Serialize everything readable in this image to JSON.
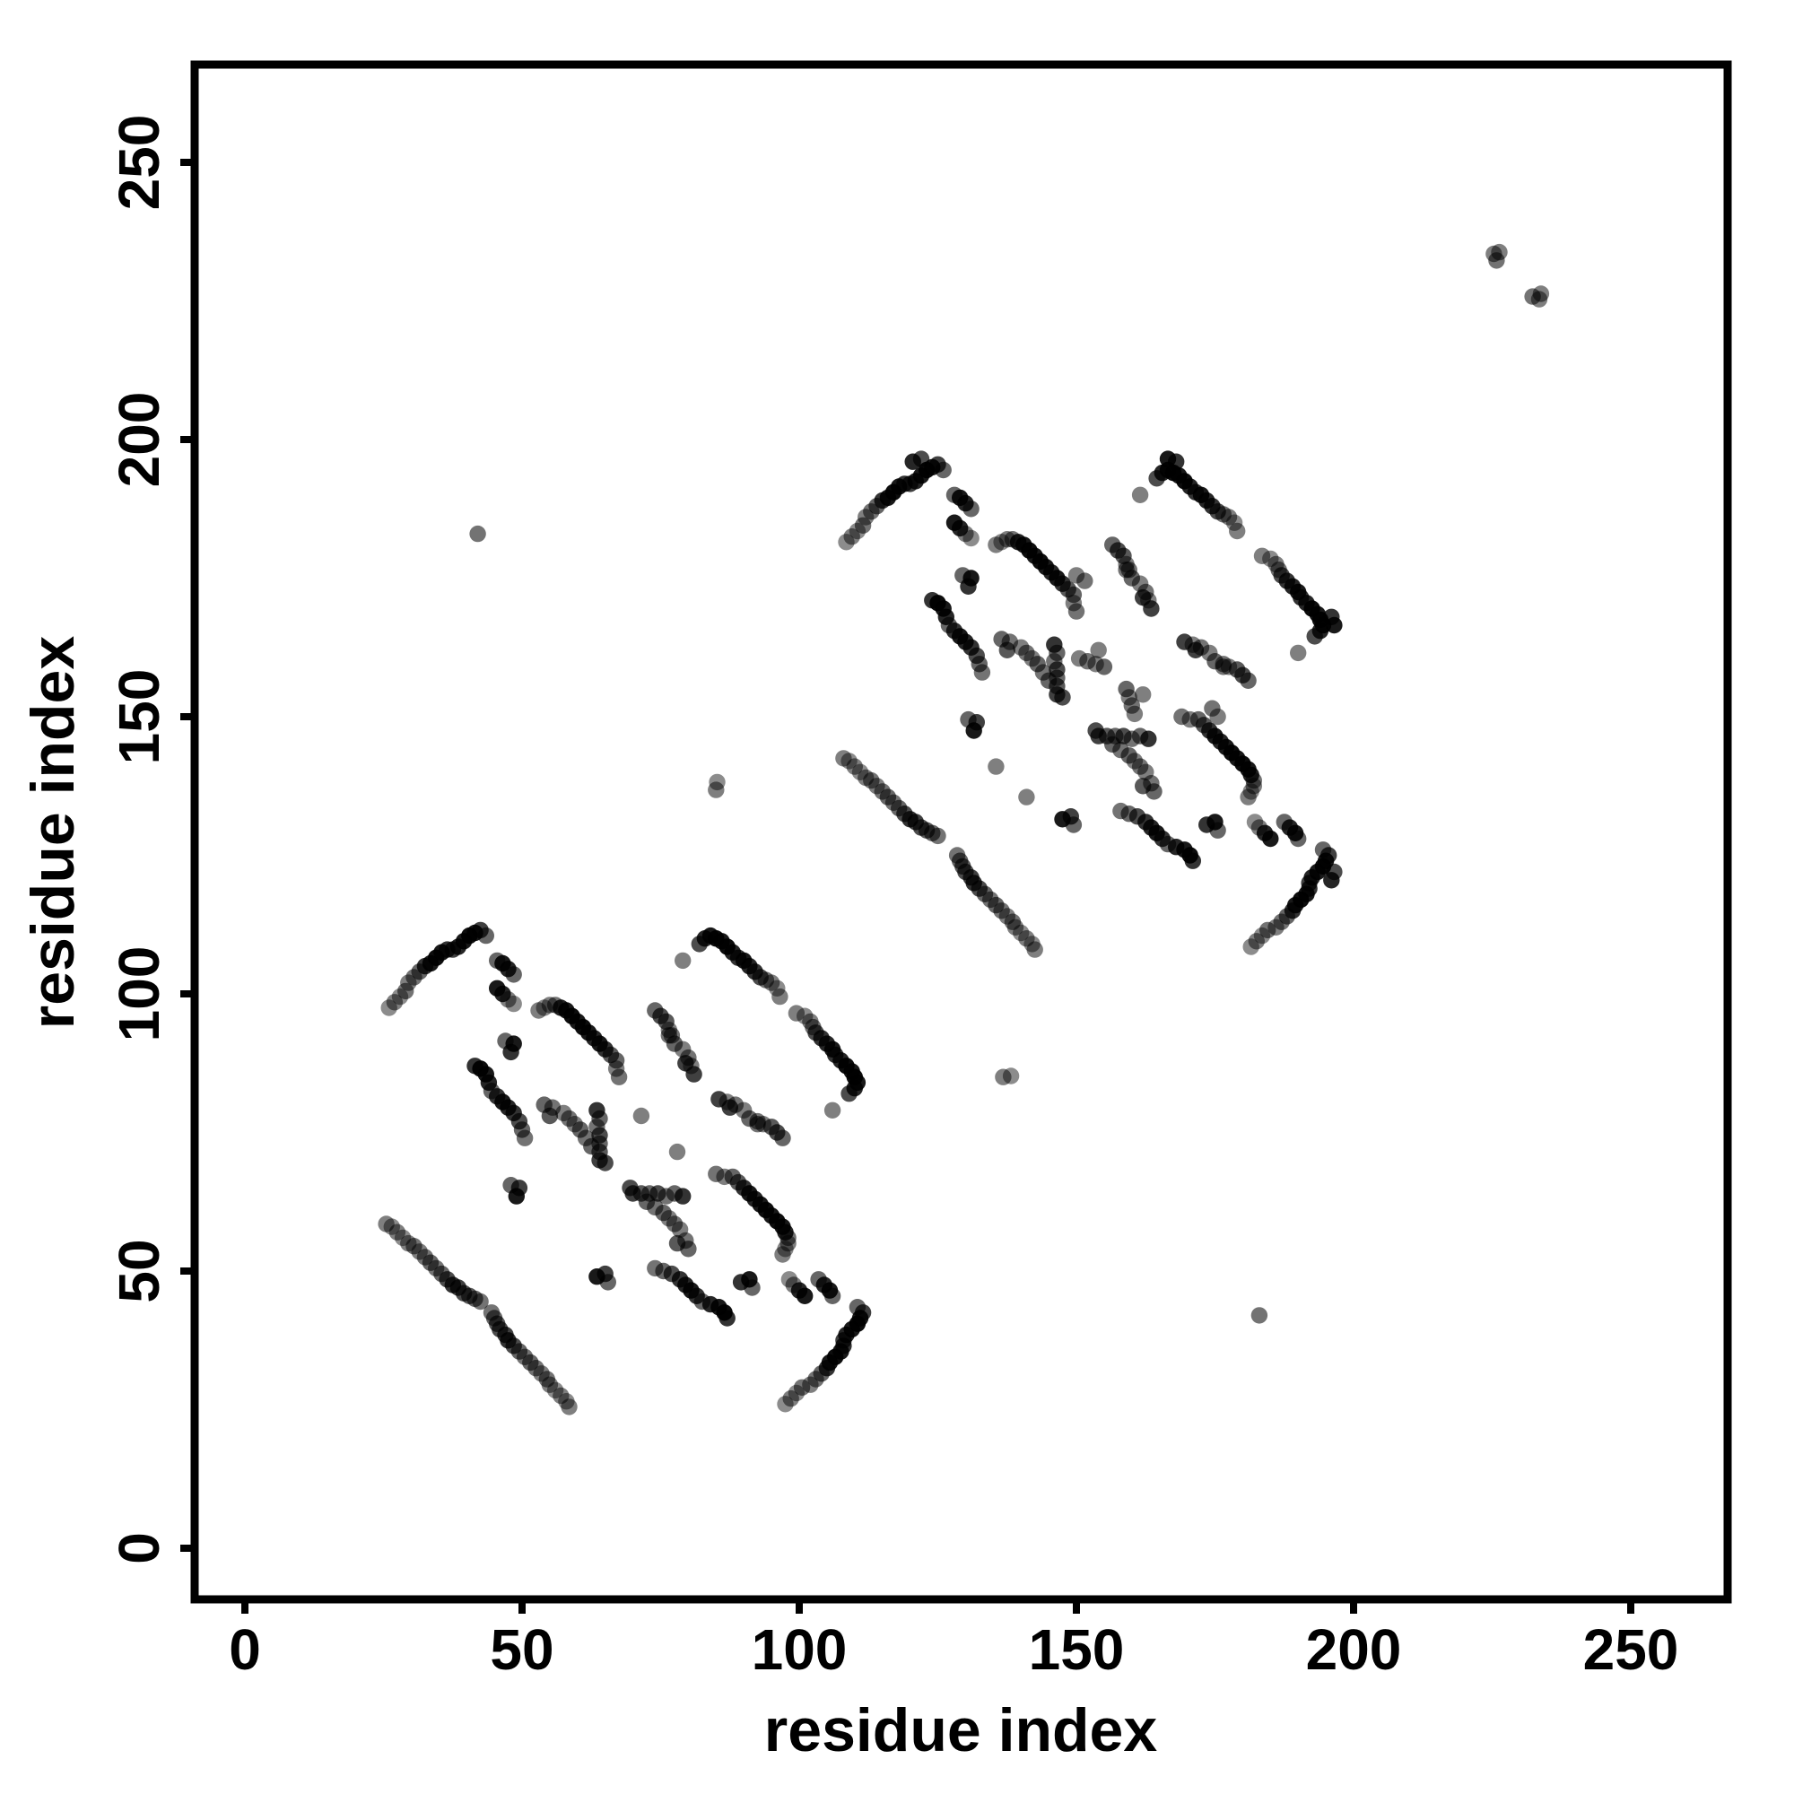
{
  "figure": {
    "description": "Protein residue-residue contact map scatter plot, base-R style, black semi-transparent points, two tandem structural domains symmetric about the diagonal",
    "background_color": "#ffffff",
    "foreground_color": "#000000"
  },
  "chart_data": {
    "type": "scatter",
    "title": "",
    "xlabel": "residue index",
    "ylabel": "residue index",
    "x_ticks": [
      0,
      50,
      100,
      150,
      200,
      250
    ],
    "y_ticks": [
      0,
      50,
      100,
      150,
      200,
      250
    ],
    "xlim": [
      -9,
      267.5
    ],
    "ylim": [
      -9,
      267.5
    ],
    "grid": false,
    "legend": "none",
    "point_color": "#000000",
    "marker_radius_px": 9.2,
    "symmetry": "every contact (i,j) is also plotted as (j,i) mirrored across the main diagonal",
    "domain2_offset": {
      "dx": 82.5,
      "dy": 84
    },
    "points_upper_domain1": [
      [
        26,
        97.5,
        0.45
      ],
      [
        27,
        98.5,
        0.5
      ],
      [
        28,
        99.5,
        0.45
      ],
      [
        29,
        100.5,
        0.55
      ],
      [
        29.5,
        102,
        0.5
      ],
      [
        30.5,
        103,
        0.55
      ],
      [
        31.5,
        104,
        0.6
      ],
      [
        32.5,
        105,
        0.8
      ],
      [
        33.5,
        105.5,
        0.9
      ],
      [
        34.5,
        106.5,
        0.95
      ],
      [
        35.5,
        107.5,
        0.9
      ],
      [
        36.5,
        108,
        0.8
      ],
      [
        37.5,
        108,
        0.75
      ],
      [
        38.5,
        108.5,
        0.85
      ],
      [
        39.5,
        109.5,
        0.9
      ],
      [
        40.5,
        110.5,
        0.95
      ],
      [
        41.5,
        111,
        0.9
      ],
      [
        42.5,
        111.5,
        0.75
      ],
      [
        43.5,
        110.5,
        0.6
      ],
      [
        45.5,
        106,
        0.6
      ],
      [
        46.5,
        105.5,
        0.9
      ],
      [
        47.5,
        104.5,
        0.85
      ],
      [
        48.5,
        103.5,
        0.6
      ],
      [
        45.5,
        101,
        0.9
      ],
      [
        46.5,
        100,
        0.85
      ],
      [
        47.5,
        99,
        0.5
      ],
      [
        48.5,
        98.2,
        0.45
      ],
      [
        53,
        97,
        0.5
      ],
      [
        54,
        97.5,
        0.45
      ],
      [
        55,
        98,
        0.5
      ],
      [
        56,
        98,
        0.55
      ],
      [
        57,
        97.5,
        0.85
      ],
      [
        58,
        97,
        0.9
      ],
      [
        59,
        96,
        0.95
      ],
      [
        60,
        95,
        0.9
      ],
      [
        61,
        94,
        0.95
      ],
      [
        62,
        93,
        0.9
      ],
      [
        63,
        92,
        0.85
      ],
      [
        64,
        91,
        0.9
      ],
      [
        65,
        90,
        0.8
      ],
      [
        66,
        89,
        0.65
      ],
      [
        67,
        88,
        0.6
      ],
      [
        67,
        86.5,
        0.5
      ],
      [
        67.5,
        85,
        0.55
      ],
      [
        41.5,
        87,
        0.8
      ],
      [
        42.5,
        86.5,
        0.95
      ],
      [
        43.5,
        85.5,
        0.9
      ],
      [
        44,
        84,
        0.85
      ],
      [
        44.5,
        82.5,
        0.6
      ],
      [
        45.5,
        81.5,
        0.8
      ],
      [
        46.5,
        80.5,
        0.9
      ],
      [
        47.5,
        79.5,
        0.85
      ],
      [
        48.5,
        78.5,
        0.8
      ],
      [
        49.5,
        77,
        0.7
      ],
      [
        50,
        75.5,
        0.6
      ],
      [
        50.5,
        74,
        0.55
      ],
      [
        63.5,
        79,
        0.8
      ],
      [
        64,
        77.5,
        0.6
      ],
      [
        63.5,
        76,
        0.55
      ],
      [
        64,
        74.5,
        0.7
      ],
      [
        64,
        73,
        0.6
      ],
      [
        64,
        71.5,
        0.65
      ],
      [
        64,
        70,
        0.75
      ],
      [
        57.5,
        78.5,
        0.5
      ],
      [
        58.5,
        77.5,
        0.55
      ],
      [
        59.5,
        76.5,
        0.5
      ],
      [
        60.5,
        75.5,
        0.6
      ],
      [
        61.5,
        74,
        0.55
      ],
      [
        62.5,
        72.5,
        0.6
      ],
      [
        65,
        69.5,
        0.7
      ],
      [
        47,
        91.5,
        0.6
      ],
      [
        48.5,
        91,
        0.9
      ],
      [
        48,
        89.5,
        0.8
      ],
      [
        74,
        97,
        0.6
      ],
      [
        75,
        96,
        0.7
      ],
      [
        76,
        95,
        0.65
      ],
      [
        76.5,
        93.5,
        0.5
      ],
      [
        77,
        92.5,
        0.55
      ],
      [
        79.5,
        87.5,
        0.75
      ],
      [
        81,
        85.5,
        0.75
      ],
      [
        80.5,
        87,
        0.5
      ],
      [
        80,
        88.5,
        0.55
      ],
      [
        79,
        90,
        0.5
      ],
      [
        77.5,
        91,
        0.6
      ],
      [
        76.5,
        92.5,
        0.55
      ],
      [
        71.5,
        78,
        0.5
      ],
      [
        79,
        106,
        0.5
      ],
      [
        82,
        109,
        0.7
      ],
      [
        83,
        110,
        0.85
      ],
      [
        84,
        110.5,
        0.9
      ],
      [
        85,
        110,
        0.95
      ],
      [
        86,
        109.5,
        0.9
      ],
      [
        87,
        108.5,
        0.95
      ],
      [
        88,
        107.5,
        0.85
      ],
      [
        89,
        106.5,
        0.8
      ],
      [
        90,
        106,
        0.9
      ],
      [
        91,
        105,
        0.85
      ],
      [
        92,
        104,
        0.8
      ],
      [
        93,
        103,
        0.7
      ],
      [
        94,
        102.5,
        0.55
      ],
      [
        95,
        102,
        0.5
      ],
      [
        96,
        101,
        0.45
      ],
      [
        96.5,
        99.5,
        0.5
      ],
      [
        25.5,
        58.5,
        0.5
      ],
      [
        26.5,
        58,
        0.45
      ],
      [
        27.5,
        57,
        0.5
      ],
      [
        28.5,
        56,
        0.45
      ],
      [
        29.5,
        55,
        0.5
      ],
      [
        30.5,
        54.5,
        0.55
      ],
      [
        31.5,
        53.5,
        0.5
      ],
      [
        32.5,
        52.5,
        0.55
      ],
      [
        33.5,
        51.5,
        0.6
      ],
      [
        34.5,
        50.5,
        0.55
      ],
      [
        35.5,
        49.5,
        0.6
      ],
      [
        36.5,
        48.5,
        0.7
      ],
      [
        37.5,
        47.5,
        0.8
      ],
      [
        38.5,
        47,
        0.75
      ],
      [
        39.5,
        46,
        0.7
      ],
      [
        40.5,
        45.5,
        0.65
      ],
      [
        41.5,
        45,
        0.6
      ],
      [
        42.5,
        44.5,
        0.55
      ],
      [
        48,
        65.5,
        0.6
      ],
      [
        49.5,
        65,
        0.75
      ],
      [
        49,
        63.5,
        0.9
      ],
      [
        54,
        80,
        0.6
      ],
      [
        55.5,
        79.5,
        0.55
      ],
      [
        55,
        78,
        0.65
      ]
    ],
    "points_upper_domain2_extra": [
      [
        150,
        175.5,
        0.5
      ],
      [
        151.5,
        174.5,
        0.55
      ],
      [
        150.5,
        160.5,
        0.5
      ],
      [
        152,
        160,
        0.55
      ],
      [
        153.5,
        159.5,
        0.5
      ],
      [
        155,
        159,
        0.6
      ],
      [
        135.5,
        141,
        0.5
      ],
      [
        120.5,
        196,
        0.85
      ],
      [
        122,
        196.5,
        0.7
      ],
      [
        166.5,
        196.5,
        0.9
      ],
      [
        168,
        196,
        0.8
      ]
    ],
    "points_upper_isolated": [
      [
        42,
        183,
        0.55
      ],
      [
        85,
        136.8,
        0.5
      ],
      [
        85.2,
        138.2,
        0.45
      ],
      [
        225.3,
        233.5,
        0.5
      ],
      [
        226.3,
        233.8,
        0.5
      ],
      [
        225.8,
        232.3,
        0.55
      ]
    ]
  }
}
